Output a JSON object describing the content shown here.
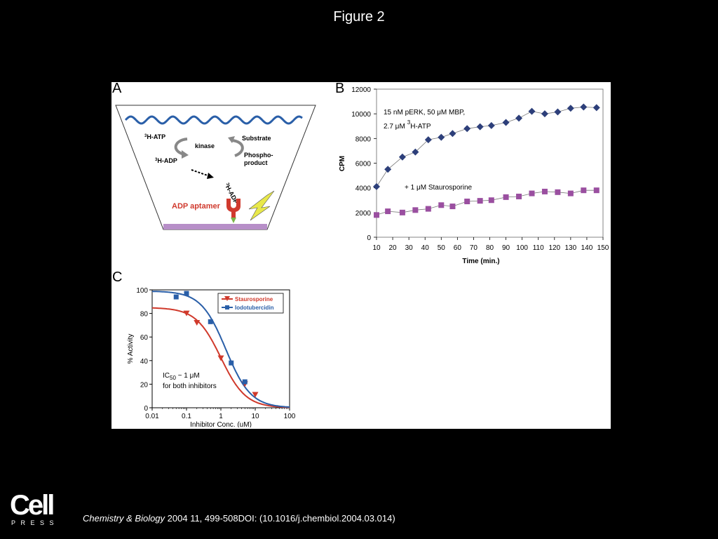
{
  "figure_title": "Figure 2",
  "panels": {
    "a": {
      "letter": "A",
      "atp": "H-ATP",
      "adp": "H-ADP",
      "kinase": "kinase",
      "substrate": "Substrate",
      "phospho_line1": "Phospho-",
      "phospho_line2": "product",
      "bound_adp": "H-ADP",
      "aptamer": "ADP aptamer",
      "superscript": "3",
      "colors": {
        "wave": "#2a5fa8",
        "aptamer": "#d03a2e",
        "base": "#b78fc8",
        "bolt": "#e8e84a",
        "tip": "#7ab648"
      }
    },
    "b": {
      "letter": "B"
    },
    "c": {
      "letter": "C"
    }
  },
  "chart_data": [
    {
      "panel": "B",
      "type": "scatter",
      "xlabel": "Time (min.)",
      "ylabel": "CPM",
      "xlim": [
        10,
        150
      ],
      "ylim": [
        0,
        12000
      ],
      "x_ticks": [
        10,
        20,
        30,
        40,
        50,
        60,
        70,
        80,
        90,
        100,
        110,
        120,
        130,
        140,
        150
      ],
      "y_ticks": [
        0,
        2000,
        4000,
        6000,
        8000,
        10000,
        12000
      ],
      "annotations": {
        "top_line1": "15 nM pERK, 50 μM MBP,",
        "top_line2_pre": "2.7 μM",
        "top_line2_sup": "3",
        "top_line2_post": "H-ATP",
        "bottom": "+ 1 μM Staurosporine"
      },
      "grid": false,
      "series": [
        {
          "color": "#2d3f7a",
          "marker": "diamond",
          "x": [
            10,
            17,
            26,
            34,
            42,
            50,
            57,
            66,
            74,
            81,
            90,
            98,
            106,
            114,
            122,
            130,
            138,
            146
          ],
          "y": [
            4100,
            5500,
            6500,
            6900,
            7900,
            8100,
            8400,
            8800,
            8950,
            9050,
            9300,
            9650,
            10200,
            10000,
            10150,
            10450,
            10550,
            10500
          ]
        },
        {
          "color": "#9a4fa0",
          "marker": "square",
          "x": [
            10,
            17,
            26,
            34,
            42,
            50,
            57,
            66,
            74,
            81,
            90,
            98,
            106,
            114,
            122,
            130,
            138,
            146
          ],
          "y": [
            1800,
            2100,
            2000,
            2200,
            2300,
            2600,
            2500,
            2900,
            2950,
            3000,
            3250,
            3300,
            3550,
            3700,
            3650,
            3550,
            3800,
            3800
          ]
        }
      ]
    },
    {
      "panel": "C",
      "type": "scatter",
      "xlabel": "Inhibitor Conc. (uM)",
      "ylabel": "% Activity",
      "x_scale": "log",
      "xlim": [
        0.01,
        100
      ],
      "ylim": [
        0,
        100
      ],
      "x_ticks": [
        "0.01",
        "0.1",
        "1",
        "10",
        "100"
      ],
      "y_ticks": [
        0,
        20,
        40,
        60,
        80,
        100
      ],
      "legend_position": "top-right",
      "annotation_line1_main": "IC",
      "annotation_line1_sub": "50",
      "annotation_line1_rest": " ~ 1 μM",
      "annotation_line2": "for both inhibitors",
      "series": [
        {
          "name": "Staurosporine",
          "color": "#d0392b",
          "marker": "triangle-down",
          "x": [
            0.1,
            0.2,
            1,
            5,
            10
          ],
          "y": [
            80,
            72,
            42,
            20,
            11
          ],
          "curve_top": 85,
          "curve_ic50": 1.0,
          "curve_hill": 1.2
        },
        {
          "name": "Iodotubercidin",
          "color": "#2a5fa8",
          "marker": "square",
          "x": [
            0.05,
            0.1,
            0.5,
            2,
            5
          ],
          "y": [
            94,
            97,
            73,
            38,
            22
          ],
          "curve_top": 99,
          "curve_ic50": 1.4,
          "curve_hill": 1.2
        }
      ]
    }
  ],
  "footer": {
    "logo_word": "Cell",
    "logo_sub": "PRESS",
    "citation_journal": "Chemistry & Biology",
    "citation_rest": " 2004 11, 499-508DOI: (10.1016/j.chembiol.2004.03.014)"
  }
}
